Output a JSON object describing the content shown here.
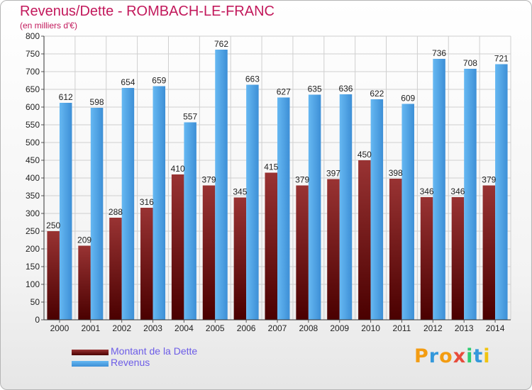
{
  "chart_data": {
    "type": "bar",
    "title": "Revenus/Dette - ROMBACH-LE-FRANC",
    "subtitle": "(en milliers d'€)",
    "categories": [
      "2000",
      "2001",
      "2002",
      "2003",
      "2004",
      "2005",
      "2006",
      "2007",
      "2008",
      "2009",
      "2010",
      "2011",
      "2012",
      "2013",
      "2014"
    ],
    "series": [
      {
        "name": "Montant de la Dette",
        "color": "#7a1a1a",
        "values": [
          250,
          209,
          288,
          316,
          410,
          379,
          345,
          415,
          379,
          397,
          450,
          398,
          346,
          346,
          379
        ]
      },
      {
        "name": "Revenus",
        "color": "#4aa3e8",
        "values": [
          612,
          598,
          654,
          659,
          557,
          762,
          663,
          627,
          635,
          636,
          622,
          609,
          736,
          708,
          721
        ]
      }
    ],
    "ylim": [
      0,
      800
    ],
    "yticks": [
      0,
      50,
      100,
      150,
      200,
      250,
      300,
      350,
      400,
      450,
      500,
      550,
      600,
      650,
      700,
      750,
      800
    ],
    "grid": true,
    "legend": "bottom-left"
  },
  "legend_labels": [
    "Montant de la Dette",
    "Revenus"
  ],
  "logo": {
    "text": "Proxiti",
    "letters": [
      {
        "ch": "P",
        "color": "#f39c12"
      },
      {
        "ch": "r",
        "color": "#3498db"
      },
      {
        "ch": "o",
        "color": "#f39c12"
      },
      {
        "ch": "x",
        "color": "#e74c3c"
      },
      {
        "ch": "i",
        "color": "#2ecc71"
      },
      {
        "ch": "t",
        "color": "#3498db"
      },
      {
        "ch": "i",
        "color": "#f1c40f"
      }
    ]
  }
}
